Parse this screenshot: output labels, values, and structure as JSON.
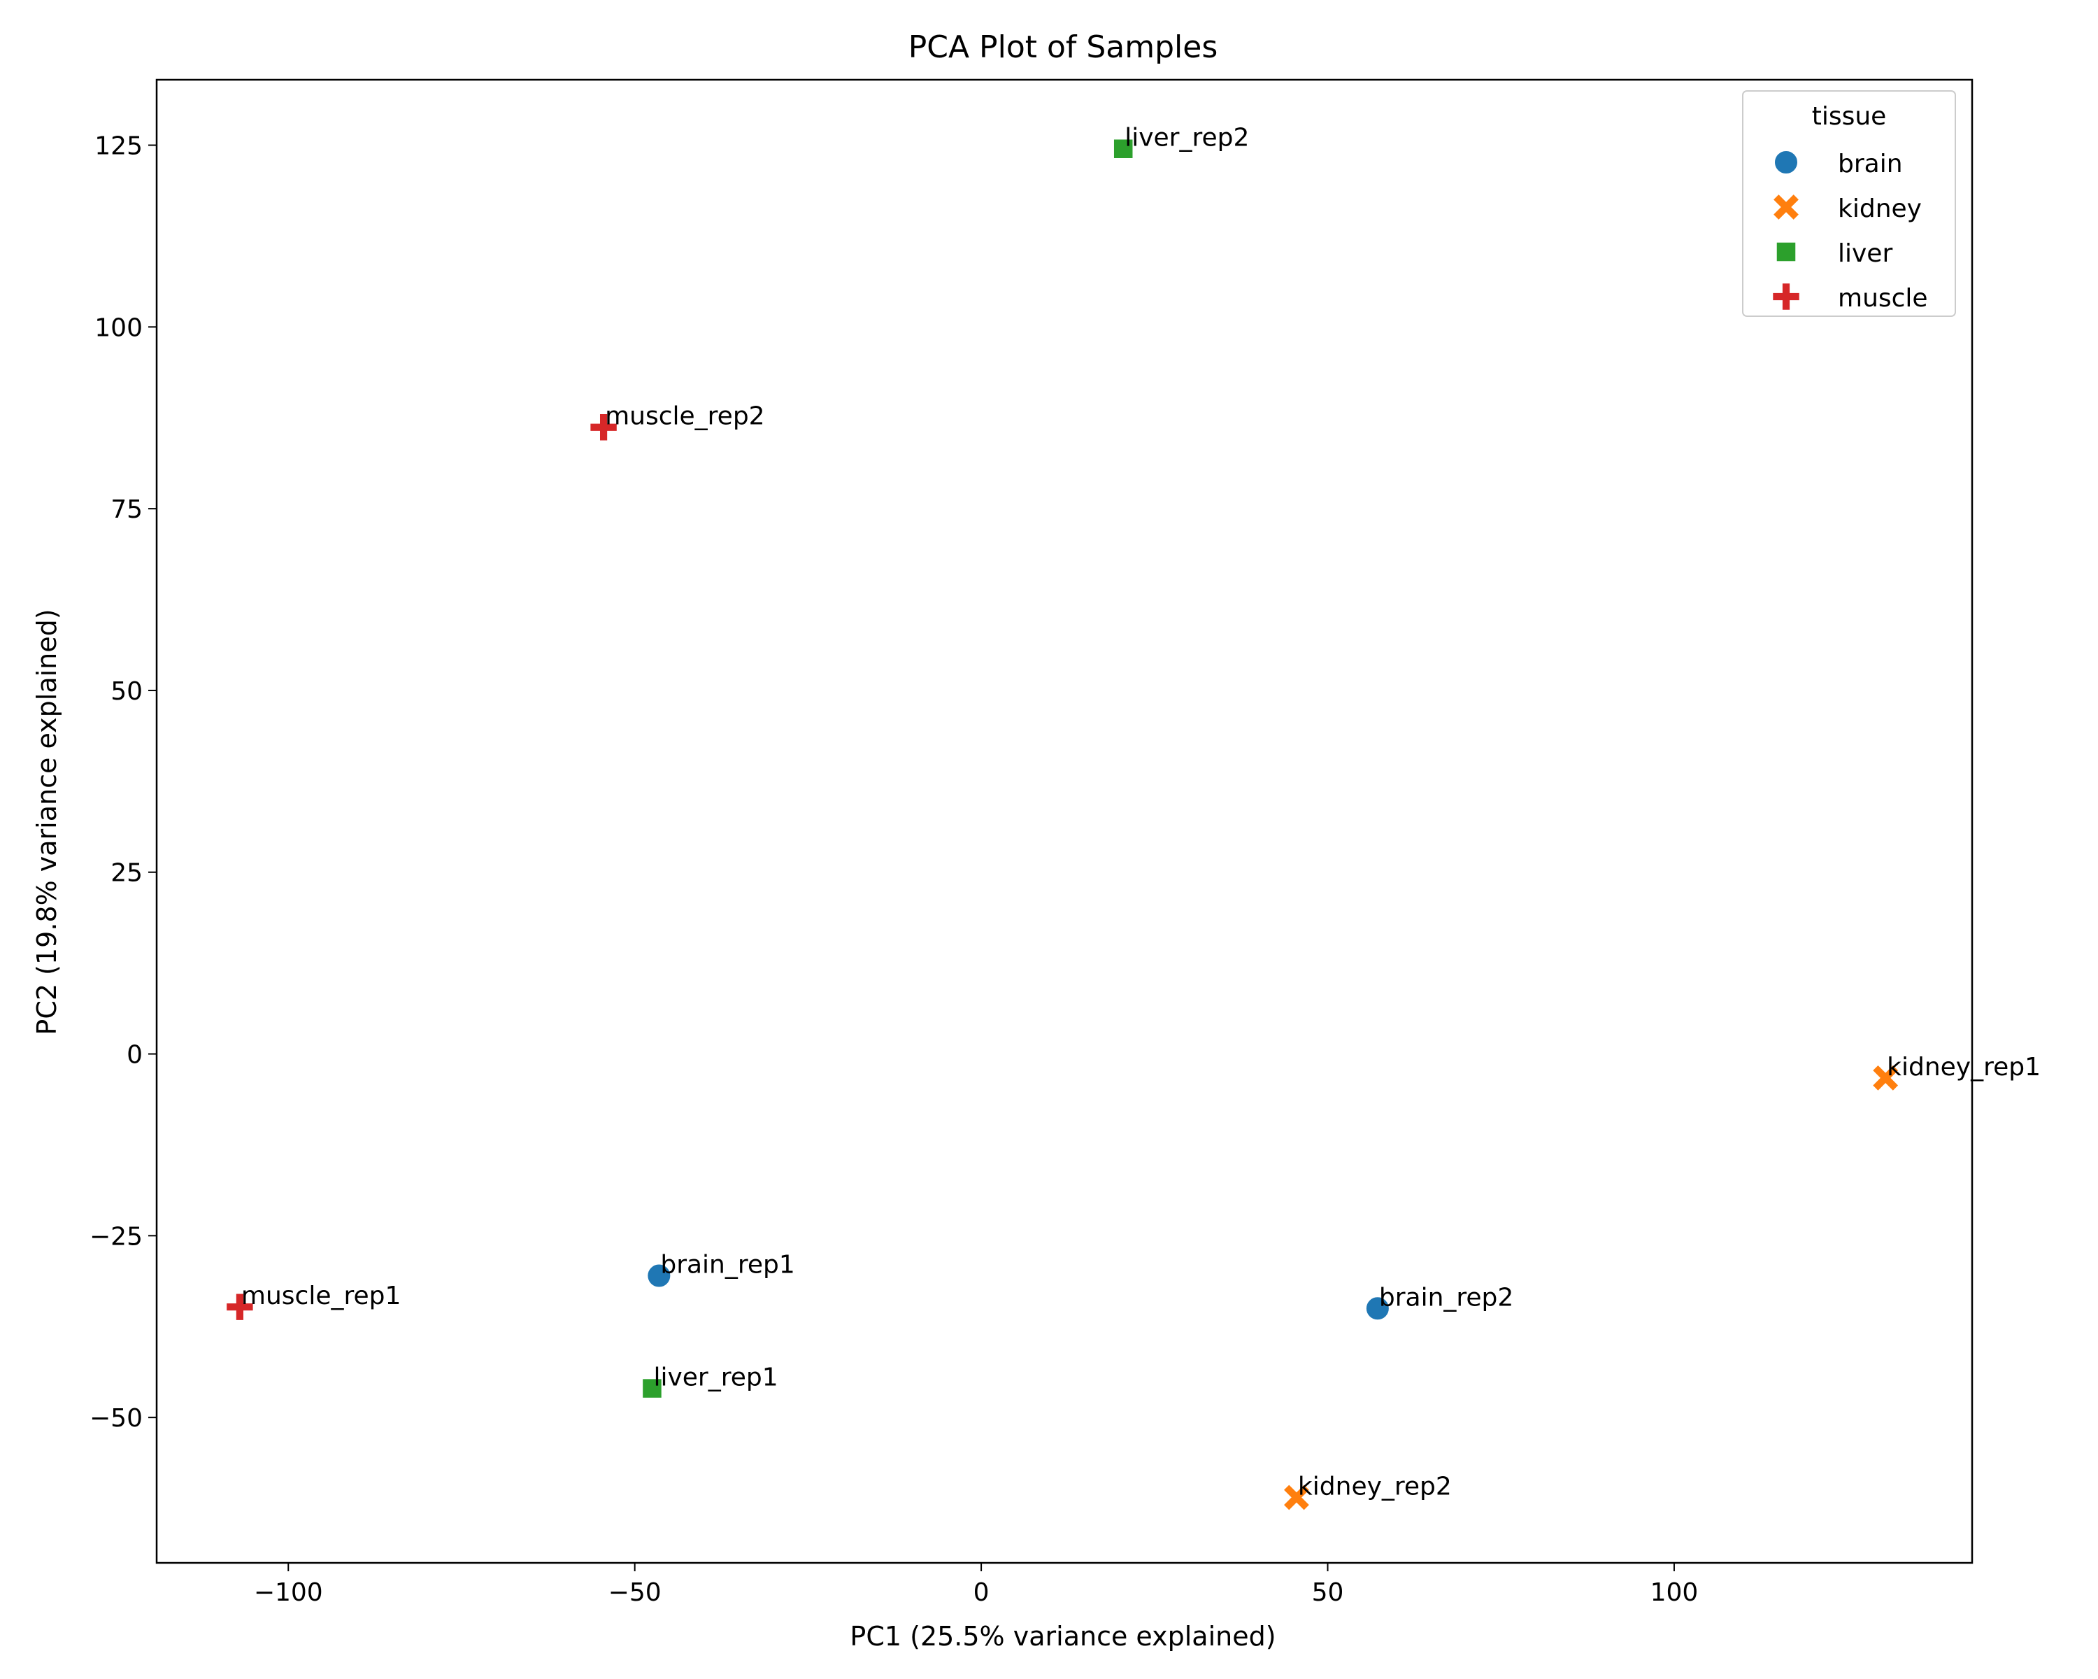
{
  "chart_data": {
    "type": "scatter",
    "title": "PCA Plot of Samples",
    "xlabel": "PC1 (25.5% variance explained)",
    "ylabel": "PC2 (19.8% variance explained)",
    "xlim": [
      -119,
      143
    ],
    "ylim": [
      -70,
      134
    ],
    "xticks": [
      -100,
      -50,
      0,
      50,
      100
    ],
    "xtick_labels": [
      "−100",
      "−50",
      "0",
      "50",
      "100"
    ],
    "yticks": [
      -50,
      -25,
      0,
      25,
      50,
      75,
      100,
      125
    ],
    "ytick_labels": [
      "−50",
      "−25",
      "0",
      "25",
      "50",
      "75",
      "100",
      "125"
    ],
    "grid": false,
    "legend": {
      "title": "tissue",
      "placement": "top-right",
      "entries": [
        {
          "label": "brain",
          "color": "#1f77b4",
          "marker": "circle"
        },
        {
          "label": "kidney",
          "color": "#ff7f0e",
          "marker": "x"
        },
        {
          "label": "liver",
          "color": "#2ca02c",
          "marker": "square"
        },
        {
          "label": "muscle",
          "color": "#d62728",
          "marker": "plus"
        }
      ]
    },
    "points": [
      {
        "label": "liver_rep2",
        "tissue": "liver",
        "x": 20.5,
        "y": 124.5
      },
      {
        "label": "muscle_rep2",
        "tissue": "muscle",
        "x": -54.5,
        "y": 86.2
      },
      {
        "label": "kidney_rep1",
        "tissue": "kidney",
        "x": 130.5,
        "y": -3.3
      },
      {
        "label": "brain_rep1",
        "tissue": "brain",
        "x": -46.5,
        "y": -30.5
      },
      {
        "label": "muscle_rep1",
        "tissue": "muscle",
        "x": -107,
        "y": -34.8
      },
      {
        "label": "brain_rep2",
        "tissue": "brain",
        "x": 57.2,
        "y": -35
      },
      {
        "label": "liver_rep1",
        "tissue": "liver",
        "x": -47.5,
        "y": -46
      },
      {
        "label": "kidney_rep2",
        "tissue": "kidney",
        "x": 45.5,
        "y": -61
      }
    ]
  }
}
